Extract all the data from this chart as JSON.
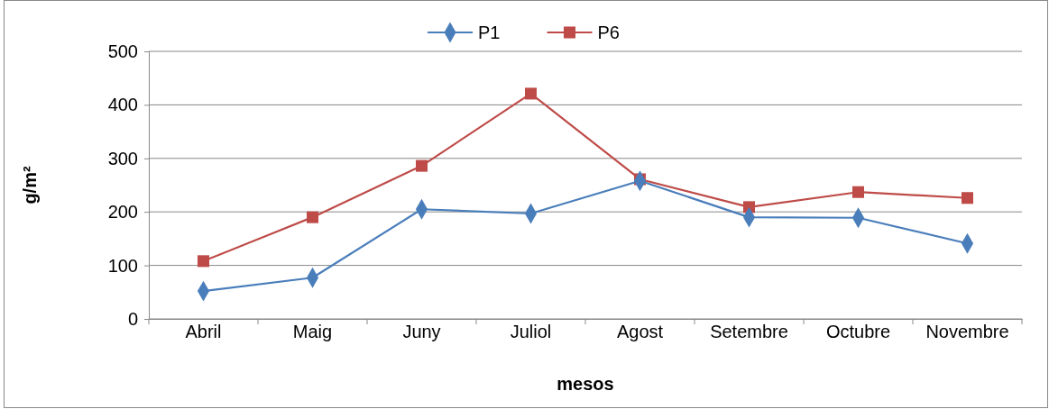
{
  "chart_data": {
    "type": "line",
    "xlabel": "mesos",
    "ylabel": "g/m²",
    "categories": [
      "Abril",
      "Maig",
      "Juny",
      "Juliol",
      "Agost",
      "Setembre",
      "Octubre",
      "Novembre"
    ],
    "series": [
      {
        "name": "P1",
        "color": "#4a7ebb",
        "marker": "diamond",
        "values": [
          52,
          77,
          205,
          197,
          258,
          190,
          189,
          141
        ]
      },
      {
        "name": "P6",
        "color": "#be4b48",
        "marker": "square",
        "values": [
          108,
          190,
          286,
          421,
          261,
          209,
          237,
          226
        ]
      }
    ],
    "ylim": [
      0,
      500
    ],
    "yticks": [
      0,
      100,
      200,
      300,
      400,
      500
    ],
    "grid": "y",
    "legend": "top",
    "line_style": "solid"
  }
}
